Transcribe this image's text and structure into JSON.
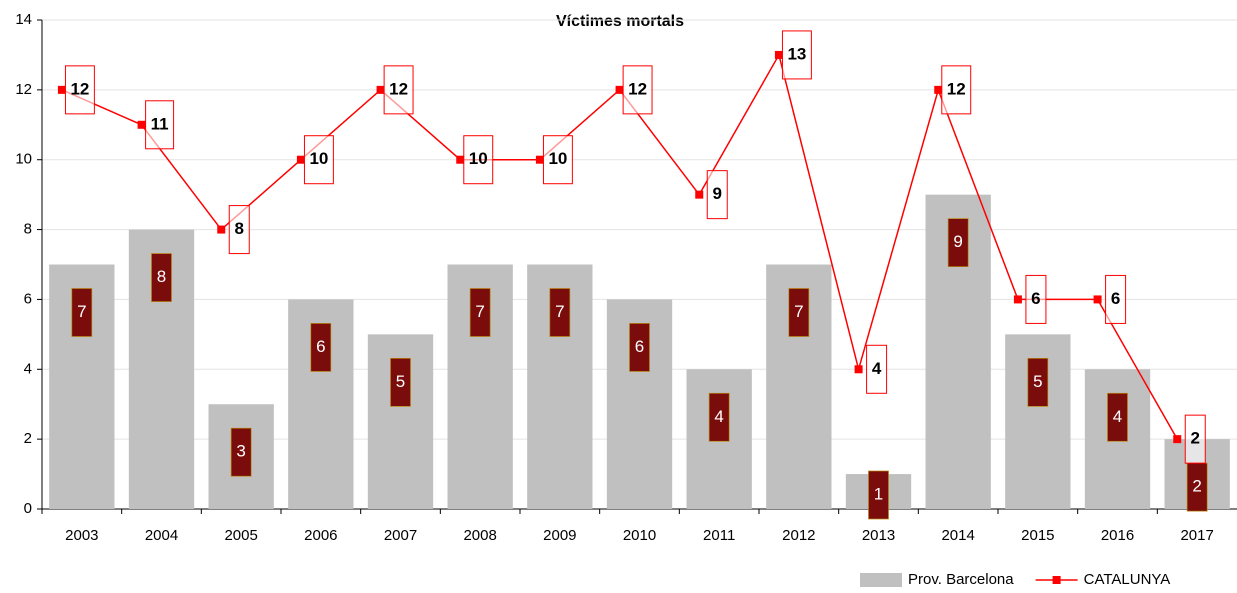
{
  "chart_data": {
    "type": "bar_line",
    "title": "Víctimes mortals",
    "categories": [
      "2003",
      "2004",
      "2005",
      "2006",
      "2007",
      "2008",
      "2009",
      "2010",
      "2011",
      "2012",
      "2013",
      "2014",
      "2015",
      "2016",
      "2017"
    ],
    "series": [
      {
        "name": "Prov. Barcelona",
        "type": "bar",
        "color": "#c0c0c0",
        "label_color": "#7b0c0c",
        "values": [
          7,
          8,
          3,
          6,
          5,
          7,
          7,
          6,
          4,
          7,
          1,
          9,
          5,
          4,
          2
        ]
      },
      {
        "name": "CATALUNYA",
        "type": "line",
        "color": "#ff0000",
        "values": [
          12,
          11,
          8,
          10,
          12,
          10,
          10,
          12,
          9,
          13,
          4,
          12,
          6,
          6,
          2
        ]
      }
    ],
    "ylim": [
      0,
      14
    ],
    "yticks": [
      0,
      2,
      4,
      6,
      8,
      10,
      12,
      14
    ],
    "grid": true,
    "legend": "bottom-right"
  }
}
